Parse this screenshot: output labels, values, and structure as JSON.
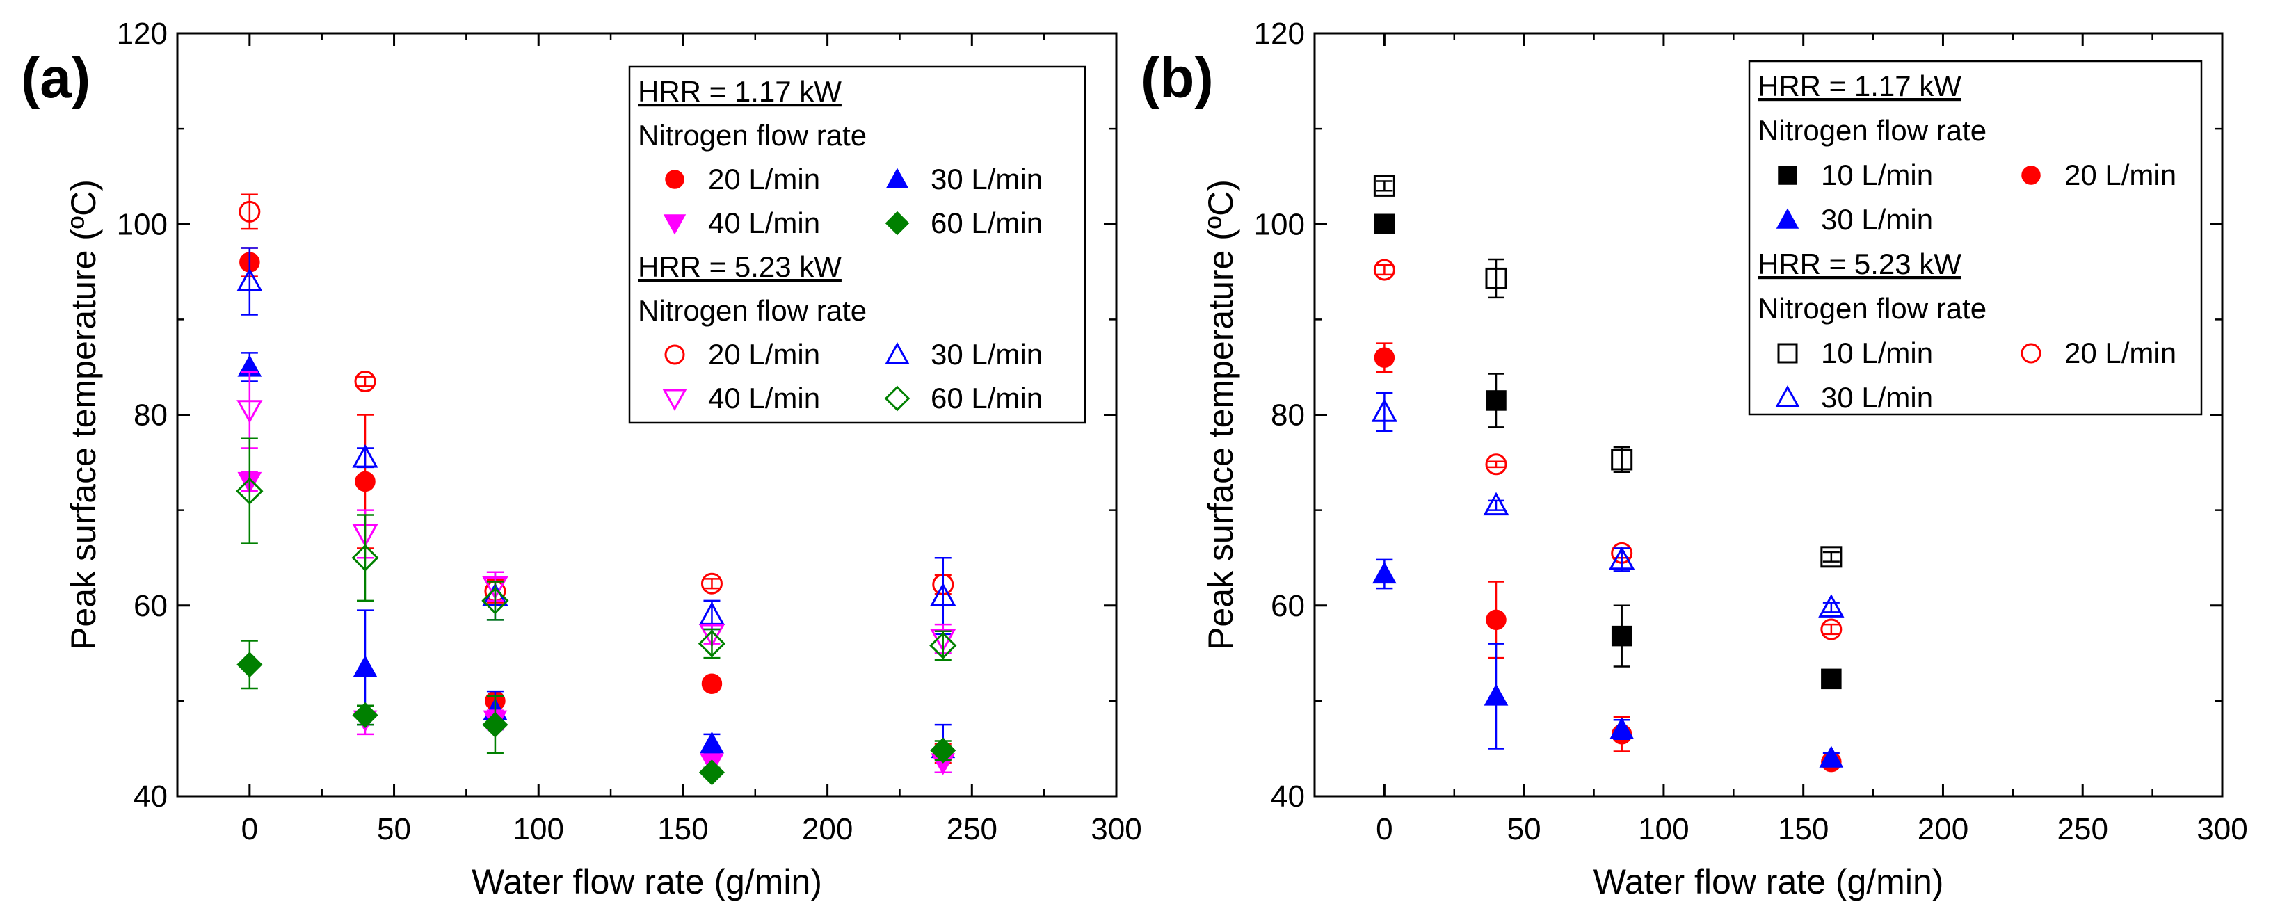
{
  "chart_data": [
    {
      "type": "scatter",
      "panel_label": "(a)",
      "xlabel": "Water flow rate (g/min)",
      "ylabel": "Peak surface temperature (ºC)",
      "xlim": [
        -25,
        300
      ],
      "ylim": [
        40,
        120
      ],
      "x_ticks": [
        0,
        50,
        100,
        150,
        200,
        250,
        300
      ],
      "y_ticks": [
        40,
        60,
        80,
        100,
        120
      ],
      "grid": false,
      "legend": {
        "position": "top-right",
        "groups": [
          {
            "header": "HRR = 1.17 kW",
            "subheader": "Nitrogen flow rate",
            "series_indices": [
              0,
              1,
              2,
              3
            ]
          },
          {
            "header": "HRR = 5.23 kW",
            "subheader": "Nitrogen flow rate",
            "series_indices": [
              4,
              5,
              6,
              7
            ]
          }
        ]
      },
      "series": [
        {
          "name": "20 L/min",
          "hrr": "1.17 kW",
          "marker": "circle",
          "filled": true,
          "color": "#FF0000",
          "x": [
            0,
            40,
            85,
            160,
            240
          ],
          "y": [
            96,
            73,
            50,
            51.8,
            44.5
          ],
          "err": [
            1.5,
            7,
            0.5,
            0.5,
            1.0
          ]
        },
        {
          "name": "30 L/min",
          "hrr": "1.17 kW",
          "marker": "triangle-up",
          "filled": true,
          "color": "#0000FF",
          "x": [
            0,
            40,
            85,
            160,
            240
          ],
          "y": [
            85,
            53.5,
            49,
            45.5,
            45
          ],
          "err": [
            1.5,
            6,
            2,
            1,
            2.5
          ]
        },
        {
          "name": "40 L/min",
          "hrr": "1.17 kW",
          "marker": "triangle-down",
          "filled": true,
          "color": "#FF00FF",
          "x": [
            0,
            40,
            85,
            160,
            240
          ],
          "y": [
            73,
            48,
            48,
            43.5,
            43.5
          ],
          "err": [
            1,
            1.5,
            1,
            0.5,
            1
          ]
        },
        {
          "name": "60 L/min",
          "hrr": "1.17 kW",
          "marker": "diamond",
          "filled": true,
          "color": "#008000",
          "x": [
            0,
            40,
            85,
            160,
            240
          ],
          "y": [
            53.8,
            48.5,
            47.5,
            42.5,
            44.8
          ],
          "err": [
            2.5,
            1,
            3,
            0.5,
            1
          ]
        },
        {
          "name": "20 L/min",
          "hrr": "5.23 kW",
          "marker": "circle",
          "filled": false,
          "color": "#FF0000",
          "x": [
            0,
            40,
            85,
            160,
            240
          ],
          "y": [
            101.3,
            83.5,
            61.5,
            62.3,
            62.2
          ],
          "err": [
            1.8,
            0.5,
            1.2,
            0.5,
            1
          ]
        },
        {
          "name": "30 L/min",
          "hrr": "5.23 kW",
          "marker": "triangle-up",
          "filled": false,
          "color": "#0000FF",
          "x": [
            0,
            40,
            85,
            160,
            240
          ],
          "y": [
            94,
            75.5,
            61,
            59,
            61
          ],
          "err": [
            3.5,
            1,
            2.5,
            1.5,
            4
          ]
        },
        {
          "name": "40 L/min",
          "hrr": "5.23 kW",
          "marker": "triangle-down",
          "filled": false,
          "color": "#FF00FF",
          "x": [
            0,
            40,
            85,
            160,
            240
          ],
          "y": [
            80.5,
            67.5,
            62,
            57,
            56.5
          ],
          "err": [
            4,
            2.5,
            1.5,
            1,
            1.5
          ]
        },
        {
          "name": "60 L/min",
          "hrr": "5.23 kW",
          "marker": "diamond",
          "filled": false,
          "color": "#008000",
          "x": [
            0,
            40,
            85,
            160,
            240
          ],
          "y": [
            72,
            65,
            60.5,
            56,
            55.8
          ],
          "err": [
            5.5,
            4.5,
            2,
            1.5,
            1.5
          ]
        }
      ]
    },
    {
      "type": "scatter",
      "panel_label": "(b)",
      "xlabel": "Water flow rate (g/min)",
      "ylabel": "Peak surface temperature (ºC)",
      "xlim": [
        -25,
        300
      ],
      "ylim": [
        40,
        120
      ],
      "x_ticks": [
        0,
        50,
        100,
        150,
        200,
        250,
        300
      ],
      "y_ticks": [
        40,
        60,
        80,
        100,
        120
      ],
      "grid": false,
      "legend": {
        "position": "top-right",
        "groups": [
          {
            "header": "HRR = 1.17 kW",
            "subheader": "Nitrogen flow rate",
            "series_indices": [
              0,
              1,
              2
            ]
          },
          {
            "header": "HRR = 5.23 kW",
            "subheader": "Nitrogen flow rate",
            "series_indices": [
              3,
              4,
              5
            ]
          }
        ]
      },
      "series": [
        {
          "name": "10 L/min",
          "hrr": "1.17 kW",
          "marker": "square",
          "filled": true,
          "color": "#000000",
          "x": [
            0,
            40,
            85,
            160
          ],
          "y": [
            100,
            81.5,
            56.8,
            52.3
          ],
          "err": [
            0.5,
            2.8,
            3.2,
            0.5
          ]
        },
        {
          "name": "20 L/min",
          "hrr": "1.17 kW",
          "marker": "circle",
          "filled": true,
          "color": "#FF0000",
          "x": [
            0,
            40,
            85,
            160
          ],
          "y": [
            86,
            58.5,
            46.5,
            43.6
          ],
          "err": [
            1.5,
            4,
            1.8,
            0.3
          ]
        },
        {
          "name": "30 L/min",
          "hrr": "1.17 kW",
          "marker": "triangle-up",
          "filled": true,
          "color": "#0000FF",
          "x": [
            0,
            40,
            85,
            160
          ],
          "y": [
            63.3,
            50.5,
            47,
            44
          ],
          "err": [
            1.5,
            5.5,
            1,
            0.5
          ]
        },
        {
          "name": "10 L/min",
          "hrr": "5.23 kW",
          "marker": "square",
          "filled": false,
          "color": "#000000",
          "x": [
            0,
            40,
            85,
            160
          ],
          "y": [
            104,
            94.3,
            75.3,
            65.1
          ],
          "err": [
            0.5,
            2,
            1.3,
            0.5
          ]
        },
        {
          "name": "20 L/min",
          "hrr": "5.23 kW",
          "marker": "circle",
          "filled": false,
          "color": "#FF0000",
          "x": [
            0,
            40,
            85,
            160
          ],
          "y": [
            95.2,
            74.8,
            65.5,
            57.5
          ],
          "err": [
            0.5,
            0.3,
            0.5,
            0.5
          ]
        },
        {
          "name": "30 L/min",
          "hrr": "5.23 kW",
          "marker": "triangle-up",
          "filled": false,
          "color": "#0000FF",
          "x": [
            0,
            40,
            85,
            160
          ],
          "y": [
            80.3,
            70.5,
            64.8,
            59.8
          ],
          "err": [
            2,
            0.5,
            1.2,
            0.5
          ]
        }
      ]
    }
  ]
}
